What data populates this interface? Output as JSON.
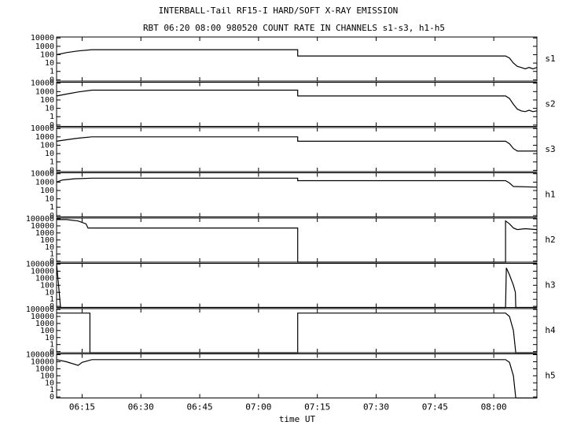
{
  "chart_data": [
    {
      "type": "line",
      "title": "INTERBALL-Tail RF15-I HARD/SOFT X-RAY EMISSION",
      "subtitle": "RBT 06:20 08:00 980520  COUNT RATE IN CHANNELS s1-s3, h1-h5",
      "log_y": true,
      "ylim": [
        0.07,
        13000
      ],
      "yticks": [
        {
          "value": 0.1,
          "label": "0"
        },
        1,
        10,
        100,
        1000,
        10000
      ],
      "series": [
        {
          "name": "s1",
          "color": "#000000",
          "x": [
            368.5,
            371,
            374,
            377.5,
            430,
            430,
            483,
            484,
            485,
            486,
            487,
            488,
            489,
            490,
            491
          ],
          "values": [
            100,
            180,
            280,
            400,
            400,
            70,
            70,
            40,
            10,
            4,
            3,
            2,
            3,
            2,
            3
          ]
        }
      ]
    },
    {
      "type": "line",
      "log_y": true,
      "ylim": [
        0.07,
        13000
      ],
      "yticks": [
        {
          "value": 0.1,
          "label": "0"
        },
        1,
        10,
        100,
        1000,
        10000
      ],
      "series": [
        {
          "name": "s2",
          "color": "#000000",
          "x": [
            368.5,
            371,
            374,
            377.5,
            430,
            430,
            483,
            484,
            485,
            486,
            487,
            488,
            489,
            490,
            491
          ],
          "values": [
            300,
            500,
            900,
            1500,
            1500,
            300,
            300,
            150,
            30,
            8,
            5,
            4,
            6,
            4,
            5
          ]
        }
      ]
    },
    {
      "type": "line",
      "log_y": true,
      "ylim": [
        0.07,
        13000
      ],
      "yticks": [
        {
          "value": 0.1,
          "label": "0"
        },
        1,
        10,
        100,
        1000,
        10000
      ],
      "series": [
        {
          "name": "s3",
          "color": "#000000",
          "x": [
            368.5,
            371,
            374,
            377.5,
            430,
            430,
            483,
            484,
            485,
            486,
            491
          ],
          "values": [
            300,
            450,
            700,
            1000,
            1000,
            300,
            300,
            150,
            40,
            20,
            20
          ]
        }
      ]
    },
    {
      "type": "line",
      "log_y": true,
      "ylim": [
        0.07,
        13000
      ],
      "yticks": [
        {
          "value": 0.1,
          "label": "0"
        },
        1,
        10,
        100,
        1000,
        10000
      ],
      "series": [
        {
          "name": "h1",
          "color": "#000000",
          "x": [
            368.5,
            370,
            373,
            377.5,
            430,
            430,
            483,
            484,
            485,
            491
          ],
          "values": [
            1000,
            1800,
            2500,
            3000,
            3000,
            1500,
            1500,
            800,
            300,
            250
          ]
        }
      ]
    },
    {
      "type": "line",
      "log_y": true,
      "ylim": [
        0.07,
        130000
      ],
      "yticks": [
        {
          "value": 0.1,
          "label": "0"
        },
        1,
        10,
        100,
        1000,
        10000,
        100000
      ],
      "series": [
        {
          "name": "h2",
          "color": "#000000",
          "x": [
            368.5,
            371,
            374,
            376,
            376.5,
            430,
            430,
            483,
            483,
            484,
            485,
            486,
            488,
            491
          ],
          "values": [
            80000,
            80000,
            50000,
            20000,
            5000,
            5000,
            0,
            0,
            50000,
            20000,
            5000,
            3000,
            4000,
            3000
          ]
        }
      ]
    },
    {
      "type": "line",
      "log_y": true,
      "ylim": [
        0.07,
        130000
      ],
      "yticks": [
        {
          "value": 0.1,
          "label": "0"
        },
        1,
        10,
        100,
        1000,
        10000,
        100000
      ],
      "series": [
        {
          "name": "h3",
          "color": "#000000",
          "x": [
            368.5,
            369,
            369.5,
            483,
            483.2,
            484,
            485,
            485.5,
            485.6,
            491
          ],
          "values": [
            100000,
            100,
            0,
            0,
            30000,
            3000,
            100,
            10,
            0,
            0
          ]
        }
      ]
    },
    {
      "type": "line",
      "log_y": true,
      "ylim": [
        0.07,
        130000
      ],
      "yticks": [
        {
          "value": 0.1,
          "label": "0"
        },
        1,
        10,
        100,
        1000,
        10000,
        100000
      ],
      "series": [
        {
          "name": "h4",
          "color": "#000000",
          "x": [
            368.5,
            377,
            377,
            430,
            430,
            483,
            484,
            485,
            485.6,
            491
          ],
          "values": [
            30000,
            30000,
            0,
            0,
            30000,
            30000,
            10000,
            100,
            0,
            0
          ]
        }
      ]
    },
    {
      "type": "line",
      "log_y": true,
      "ylim": [
        0.07,
        130000
      ],
      "yticks": [
        {
          "value": 0.1,
          "label": "0"
        },
        1,
        10,
        100,
        1000,
        10000,
        100000
      ],
      "xlabel": "time UT",
      "xlim": [
        368.5,
        491
      ],
      "xticks": [
        {
          "value": 375,
          "label": "06:15"
        },
        {
          "value": 390,
          "label": "06:30"
        },
        {
          "value": 405,
          "label": "06:45"
        },
        {
          "value": 420,
          "label": "07:00"
        },
        {
          "value": 435,
          "label": "07:15"
        },
        {
          "value": 450,
          "label": "07:30"
        },
        {
          "value": 465,
          "label": "07:45"
        },
        {
          "value": 480,
          "label": "08:00"
        }
      ],
      "series": [
        {
          "name": "h5",
          "color": "#000000",
          "x": [
            368.5,
            371,
            374,
            375,
            377.5,
            483,
            484,
            485,
            485.6,
            491
          ],
          "values": [
            20000,
            10000,
            3000,
            8000,
            20000,
            20000,
            8000,
            100,
            0,
            0
          ]
        }
      ]
    }
  ]
}
